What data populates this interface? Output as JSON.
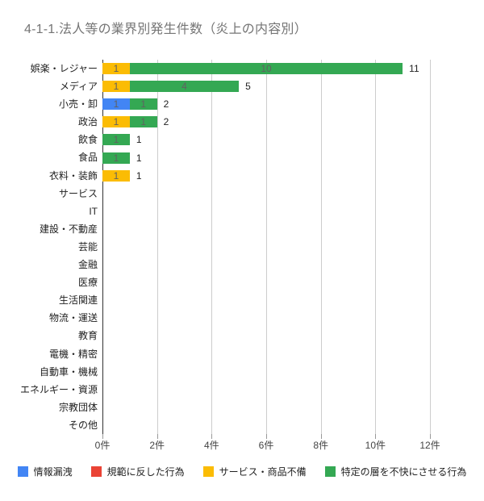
{
  "title": "4-1-1.法人等の業界別発生件数（炎上の内容別）",
  "chart_data": {
    "type": "bar",
    "orientation": "horizontal",
    "stacked": true,
    "title": "4-1-1.法人等の業界別発生件数（炎上の内容別）",
    "categories": [
      "娯楽・レジャー",
      "メディア",
      "小売・卸",
      "政治",
      "飲食",
      "食品",
      "衣料・装飾",
      "サービス",
      "IT",
      "建設・不動産",
      "芸能",
      "金融",
      "医療",
      "生活関連",
      "物流・運送",
      "教育",
      "電機・精密",
      "自動車・機械",
      "エネルギー・資源",
      "宗教団体",
      "その他"
    ],
    "series": [
      {
        "name": "情報漏洩",
        "color": "#4285F4",
        "values": [
          0,
          0,
          1,
          0,
          0,
          0,
          0,
          0,
          0,
          0,
          0,
          0,
          0,
          0,
          0,
          0,
          0,
          0,
          0,
          0,
          0
        ]
      },
      {
        "name": "規範に反した行為",
        "color": "#EA4335",
        "values": [
          0,
          0,
          0,
          0,
          0,
          0,
          0,
          0,
          0,
          0,
          0,
          0,
          0,
          0,
          0,
          0,
          0,
          0,
          0,
          0,
          0
        ]
      },
      {
        "name": "サービス・商品不備",
        "color": "#FBBC04",
        "values": [
          1,
          1,
          0,
          1,
          0,
          0,
          1,
          0,
          0,
          0,
          0,
          0,
          0,
          0,
          0,
          0,
          0,
          0,
          0,
          0,
          0
        ]
      },
      {
        "name": "特定の層を不快にさせる行為",
        "color": "#34A853",
        "values": [
          10,
          4,
          1,
          1,
          1,
          1,
          0,
          0,
          0,
          0,
          0,
          0,
          0,
          0,
          0,
          0,
          0,
          0,
          0,
          0,
          0
        ]
      }
    ],
    "totals": [
      11,
      5,
      2,
      2,
      1,
      1,
      1,
      0,
      0,
      0,
      0,
      0,
      0,
      0,
      0,
      0,
      0,
      0,
      0,
      0,
      0
    ],
    "x_ticks": [
      {
        "value": 0,
        "label": "0件"
      },
      {
        "value": 2,
        "label": "2件"
      },
      {
        "value": 4,
        "label": "4件"
      },
      {
        "value": 6,
        "label": "6件"
      },
      {
        "value": 8,
        "label": "8件"
      },
      {
        "value": 10,
        "label": "10件"
      },
      {
        "value": 12,
        "label": "12件"
      }
    ],
    "xlim": [
      0,
      12
    ],
    "grid": true,
    "legend_position": "bottom",
    "colors": {
      "axis_line": "#333333",
      "gridline": "#cccccc",
      "annotation_text": "#616161",
      "total_text": "#222222",
      "category_text": "#222222",
      "title_text": "#757575"
    }
  }
}
